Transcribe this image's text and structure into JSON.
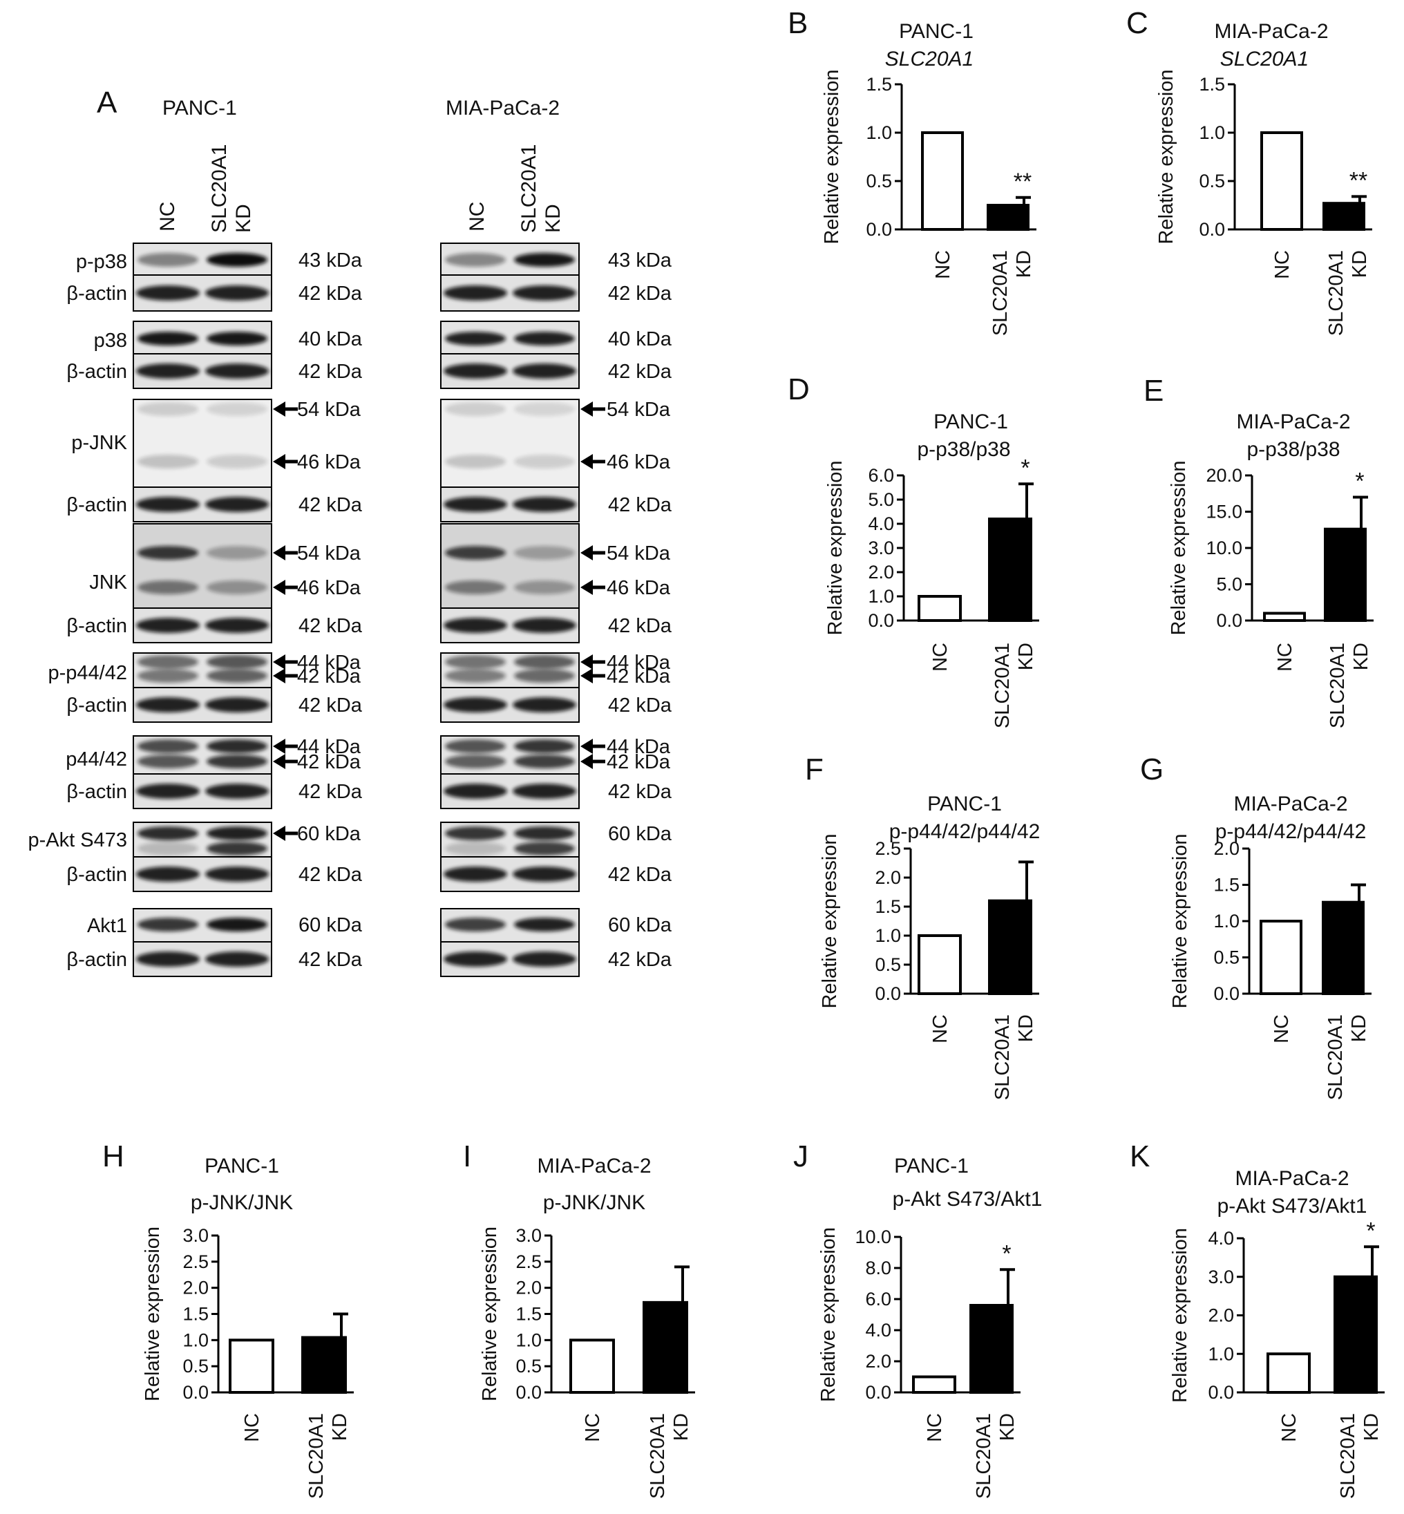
{
  "panel_A": {
    "letter": "A",
    "cell_lines": [
      "PANC-1",
      "MIA-PaCa-2"
    ],
    "lanes": {
      "nc": "NC",
      "kd_line1": "SLC20A1",
      "kd_line2": "KD"
    },
    "blots": [
      {
        "left_label": "p-p38",
        "beta_label": "β-actin",
        "left_kda": [
          "43 kDa"
        ],
        "left_beta_kda": "42 kDa",
        "right_kda": [
          "43 kDa"
        ],
        "right_beta_kda": "42 kDa",
        "left_arrows": false,
        "right_arrows": false
      },
      {
        "left_label": "p38",
        "beta_label": "β-actin",
        "left_kda": [
          "40 kDa"
        ],
        "left_beta_kda": "42 kDa",
        "right_kda": [
          "40 kDa"
        ],
        "right_beta_kda": "42 kDa",
        "left_arrows": false,
        "right_arrows": false
      },
      {
        "left_label": "p-JNK",
        "beta_label": "β-actin",
        "left_kda": [
          "54 kDa",
          "46 kDa"
        ],
        "left_beta_kda": "42 kDa",
        "right_kda": [
          "54 kDa",
          "46 kDa"
        ],
        "right_beta_kda": "42 kDa",
        "left_arrows": true,
        "right_arrows": true
      },
      {
        "left_label": "JNK",
        "beta_label": "β-actin",
        "left_kda": [
          "54 kDa",
          "46 kDa"
        ],
        "left_beta_kda": "42 kDa",
        "right_kda": [
          "54 kDa",
          "46 kDa"
        ],
        "right_beta_kda": "42 kDa",
        "left_arrows": true,
        "right_arrows": true
      },
      {
        "left_label": "p-p44/42",
        "beta_label": "β-actin",
        "left_kda": [
          "44 kDa",
          "42 kDa"
        ],
        "left_beta_kda": "42 kDa",
        "right_kda": [
          "44 kDa",
          "42 kDa"
        ],
        "right_beta_kda": "42 kDa",
        "left_arrows": true,
        "right_arrows": true
      },
      {
        "left_label": "p44/42",
        "beta_label": "β-actin",
        "left_kda": [
          "44 kDa",
          "42 kDa"
        ],
        "left_beta_kda": "42 kDa",
        "right_kda": [
          "44 kDa",
          "42 kDa"
        ],
        "right_beta_kda": "42 kDa",
        "left_arrows": true,
        "right_arrows": true
      },
      {
        "left_label": "p-Akt S473",
        "beta_label": "β-actin",
        "left_kda": [
          "60 kDa"
        ],
        "left_beta_kda": "42 kDa",
        "right_kda": [
          "60 kDa"
        ],
        "right_beta_kda": "42 kDa",
        "left_arrows": true,
        "right_arrows": false
      },
      {
        "left_label": "Akt1",
        "beta_label": "β-actin",
        "left_kda": [
          "60 kDa"
        ],
        "left_beta_kda": "42 kDa",
        "right_kda": [
          "60 kDa"
        ],
        "right_beta_kda": "42 kDa",
        "left_arrows": false,
        "right_arrows": false
      }
    ]
  },
  "chart_data": [
    {
      "panel": "B",
      "type": "bar",
      "title": "PANC-1",
      "subtitle": "SLC20A1",
      "subtitle_italic": true,
      "ylabel": "Relative expression",
      "categories": [
        "NC",
        "SLC20A1 KD"
      ],
      "values": [
        1.0,
        0.25
      ],
      "errors": [
        0,
        0.08
      ],
      "fills": [
        "#ffffff",
        "#000000"
      ],
      "significance": [
        "",
        "**"
      ],
      "ylim": [
        0,
        1.5
      ],
      "yticks": [
        "0.0",
        "0.5",
        "1.0",
        "1.5"
      ]
    },
    {
      "panel": "C",
      "type": "bar",
      "title": "MIA-PaCa-2",
      "subtitle": "SLC20A1",
      "subtitle_italic": true,
      "ylabel": "Relative expression",
      "categories": [
        "NC",
        "SLC20A1 KD"
      ],
      "values": [
        1.0,
        0.27
      ],
      "errors": [
        0,
        0.07
      ],
      "fills": [
        "#ffffff",
        "#000000"
      ],
      "significance": [
        "",
        "**"
      ],
      "ylim": [
        0,
        1.5
      ],
      "yticks": [
        "0.0",
        "0.5",
        "1.0",
        "1.5"
      ]
    },
    {
      "panel": "D",
      "type": "bar",
      "title": "PANC-1",
      "subtitle": "p-p38/p38",
      "subtitle_italic": false,
      "ylabel": "Relative expression",
      "categories": [
        "NC",
        "SLC20A1 KD"
      ],
      "values": [
        1.0,
        4.2
      ],
      "errors": [
        0,
        1.45
      ],
      "fills": [
        "#ffffff",
        "#000000"
      ],
      "significance": [
        "",
        "*"
      ],
      "ylim": [
        0,
        6.0
      ],
      "yticks": [
        "0.0",
        "1.0",
        "2.0",
        "3.0",
        "4.0",
        "5.0",
        "6.0"
      ]
    },
    {
      "panel": "E",
      "type": "bar",
      "title": "MIA-PaCa-2",
      "subtitle": "p-p38/p38",
      "subtitle_italic": false,
      "ylabel": "Relative expression",
      "categories": [
        "NC",
        "SLC20A1 KD"
      ],
      "values": [
        1.0,
        12.6
      ],
      "errors": [
        0,
        4.4
      ],
      "fills": [
        "#ffffff",
        "#000000"
      ],
      "significance": [
        "",
        "*"
      ],
      "ylim": [
        0,
        20.0
      ],
      "yticks": [
        "0.0",
        "5.0",
        "10.0",
        "15.0",
        "20.0"
      ]
    },
    {
      "panel": "F",
      "type": "bar",
      "title": "PANC-1",
      "subtitle": "p-p44/42/p44/42",
      "subtitle_italic": false,
      "ylabel": "Relative expression",
      "categories": [
        "NC",
        "SLC20A1 KD"
      ],
      "values": [
        1.0,
        1.6
      ],
      "errors": [
        0,
        0.67
      ],
      "fills": [
        "#ffffff",
        "#000000"
      ],
      "significance": [
        "",
        ""
      ],
      "ylim": [
        0,
        2.5
      ],
      "yticks": [
        "0.0",
        "0.5",
        "1.0",
        "1.5",
        "2.0",
        "2.5"
      ]
    },
    {
      "panel": "G",
      "type": "bar",
      "title": "MIA-PaCa-2",
      "subtitle": "p-p44/42/p44/42",
      "subtitle_italic": false,
      "ylabel": "Relative expression",
      "categories": [
        "NC",
        "SLC20A1 KD"
      ],
      "values": [
        1.0,
        1.26
      ],
      "errors": [
        0,
        0.24
      ],
      "fills": [
        "#ffffff",
        "#000000"
      ],
      "significance": [
        "",
        ""
      ],
      "ylim": [
        0,
        2.0
      ],
      "yticks": [
        "0.0",
        "0.5",
        "1.0",
        "1.5",
        "2.0"
      ]
    },
    {
      "panel": "H",
      "type": "bar",
      "title": "PANC-1",
      "subtitle": "p-JNK/JNK",
      "subtitle_italic": false,
      "ylabel": "Relative expression",
      "categories": [
        "NC",
        "SLC20A1 KD"
      ],
      "values": [
        1.0,
        1.05
      ],
      "errors": [
        0,
        0.45
      ],
      "fills": [
        "#ffffff",
        "#000000"
      ],
      "significance": [
        "",
        ""
      ],
      "ylim": [
        0,
        3.0
      ],
      "yticks": [
        "0.0",
        "0.5",
        "1.0",
        "1.5",
        "2.0",
        "2.5",
        "3.0"
      ]
    },
    {
      "panel": "I",
      "type": "bar",
      "title": "MIA-PaCa-2",
      "subtitle": "p-JNK/JNK",
      "subtitle_italic": false,
      "ylabel": "Relative expression",
      "categories": [
        "NC",
        "SLC20A1 KD"
      ],
      "values": [
        1.0,
        1.72
      ],
      "errors": [
        0,
        0.68
      ],
      "fills": [
        "#ffffff",
        "#000000"
      ],
      "significance": [
        "",
        ""
      ],
      "ylim": [
        0,
        3.0
      ],
      "yticks": [
        "0.0",
        "0.5",
        "1.0",
        "1.5",
        "2.0",
        "2.5",
        "3.0"
      ]
    },
    {
      "panel": "J",
      "type": "bar",
      "title": "PANC-1",
      "subtitle": "p-Akt S473/Akt1",
      "subtitle_italic": false,
      "ylabel": "Relative expression",
      "categories": [
        "NC",
        "SLC20A1 KD"
      ],
      "values": [
        1.0,
        5.6
      ],
      "errors": [
        0,
        2.3
      ],
      "fills": [
        "#ffffff",
        "#000000"
      ],
      "significance": [
        "",
        "*"
      ],
      "ylim": [
        0,
        10.0
      ],
      "yticks": [
        "0.0",
        "2.0",
        "4.0",
        "6.0",
        "8.0",
        "10.0"
      ]
    },
    {
      "panel": "K",
      "type": "bar",
      "title": "MIA-PaCa-2",
      "subtitle": "p-Akt S473/Akt1",
      "subtitle_italic": false,
      "ylabel": "Relative expression",
      "categories": [
        "NC",
        "SLC20A1 KD"
      ],
      "values": [
        1.0,
        3.0
      ],
      "errors": [
        0,
        0.78
      ],
      "fills": [
        "#ffffff",
        "#000000"
      ],
      "significance": [
        "",
        "*"
      ],
      "ylim": [
        0,
        4.0
      ],
      "yticks": [
        "0.0",
        "1.0",
        "2.0",
        "3.0",
        "4.0"
      ]
    }
  ]
}
